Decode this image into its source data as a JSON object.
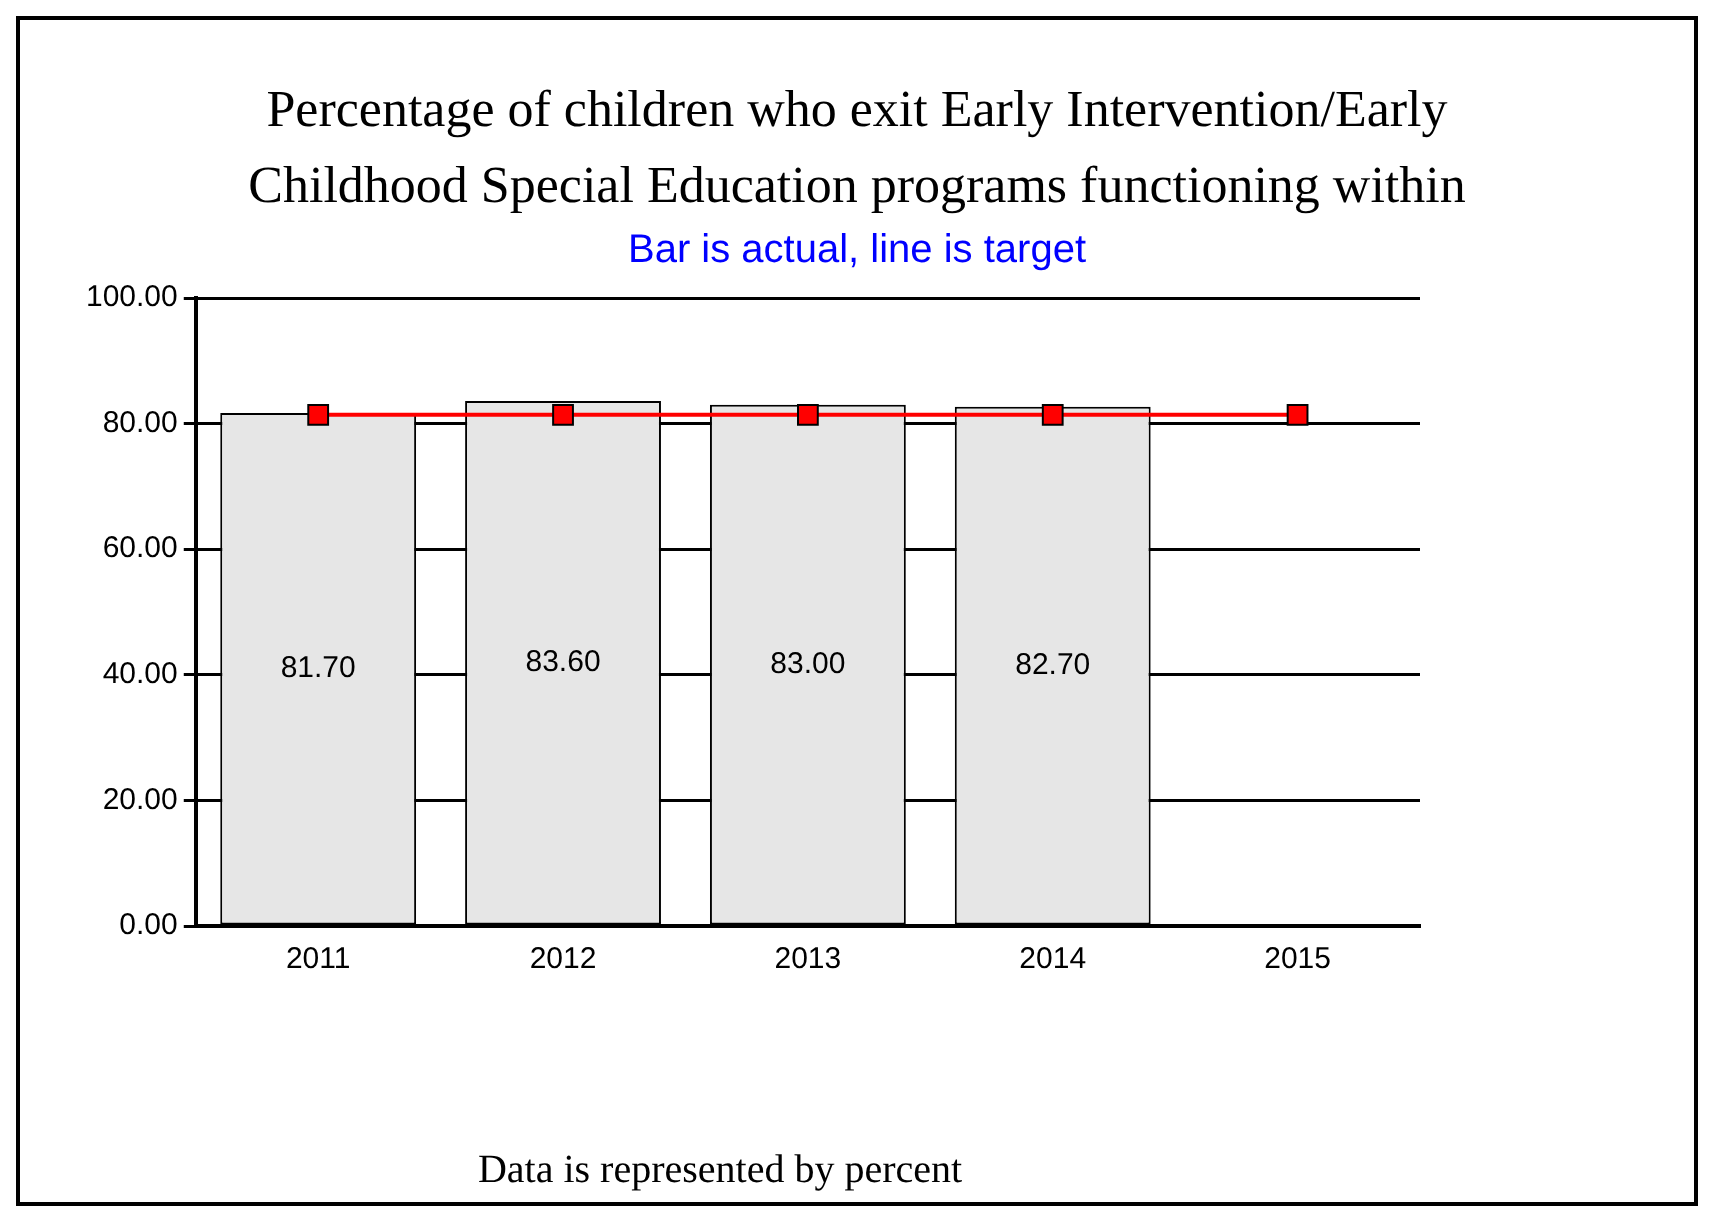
{
  "chart_data": {
    "type": "bar",
    "title": "Percentage of children who exit Early Intervention/Early Childhood Special Education programs functioning within",
    "subtitle": "Bar is actual, line is target",
    "categories": [
      "2011",
      "2012",
      "2013",
      "2014",
      "2015"
    ],
    "series": [
      {
        "color": "#e6e6e6",
        "values": [
          81.7,
          83.6,
          83.0,
          82.7,
          null
        ],
        "value_labels": [
          "81.70",
          "83.60",
          "83.00",
          "82.70",
          null
        ]
      },
      {
        "type": "line",
        "color": "#ff0000",
        "values": [
          81.4,
          81.4,
          81.4,
          81.4,
          81.4
        ],
        "marker": "square"
      }
    ],
    "ylim": [
      0,
      100
    ],
    "yticks": [
      {
        "value": 0,
        "label": "0.00"
      },
      {
        "value": 20,
        "label": "20.00"
      },
      {
        "value": 40,
        "label": "40.00"
      },
      {
        "value": 60,
        "label": "60.00"
      },
      {
        "value": 80,
        "label": "80.00"
      },
      {
        "value": 100,
        "label": "100.00"
      }
    ],
    "grid": "y",
    "legend": false,
    "annotations": [
      "Data is represented by percent"
    ]
  }
}
